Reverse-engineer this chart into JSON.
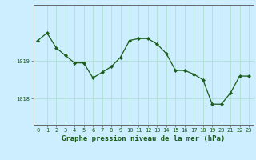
{
  "hours": [
    0,
    1,
    2,
    3,
    4,
    5,
    6,
    7,
    8,
    9,
    10,
    11,
    12,
    13,
    14,
    15,
    16,
    17,
    18,
    19,
    20,
    21,
    22,
    23
  ],
  "pressure": [
    1019.55,
    1019.75,
    1019.35,
    1019.15,
    1018.95,
    1018.95,
    1018.55,
    1018.7,
    1018.85,
    1019.1,
    1019.55,
    1019.6,
    1019.6,
    1019.45,
    1019.2,
    1018.75,
    1018.75,
    1018.65,
    1018.5,
    1017.85,
    1017.85,
    1018.15,
    1018.6,
    1018.6
  ],
  "line_color": "#1a5c1a",
  "marker": "D",
  "marker_size": 2.2,
  "line_width": 0.9,
  "background_color": "#cceeff",
  "grid_color": "#aaddcc",
  "spine_color": "#666666",
  "xlabel": "Graphe pression niveau de la mer (hPa)",
  "xlabel_fontsize": 6.5,
  "ytick_labels": [
    "1019",
    "1018"
  ],
  "ytick_values": [
    1019.0,
    1018.0
  ],
  "ylim_min": 1017.3,
  "ylim_max": 1020.5,
  "xlim_min": -0.5,
  "xlim_max": 23.5,
  "tick_fontsize": 5.0
}
